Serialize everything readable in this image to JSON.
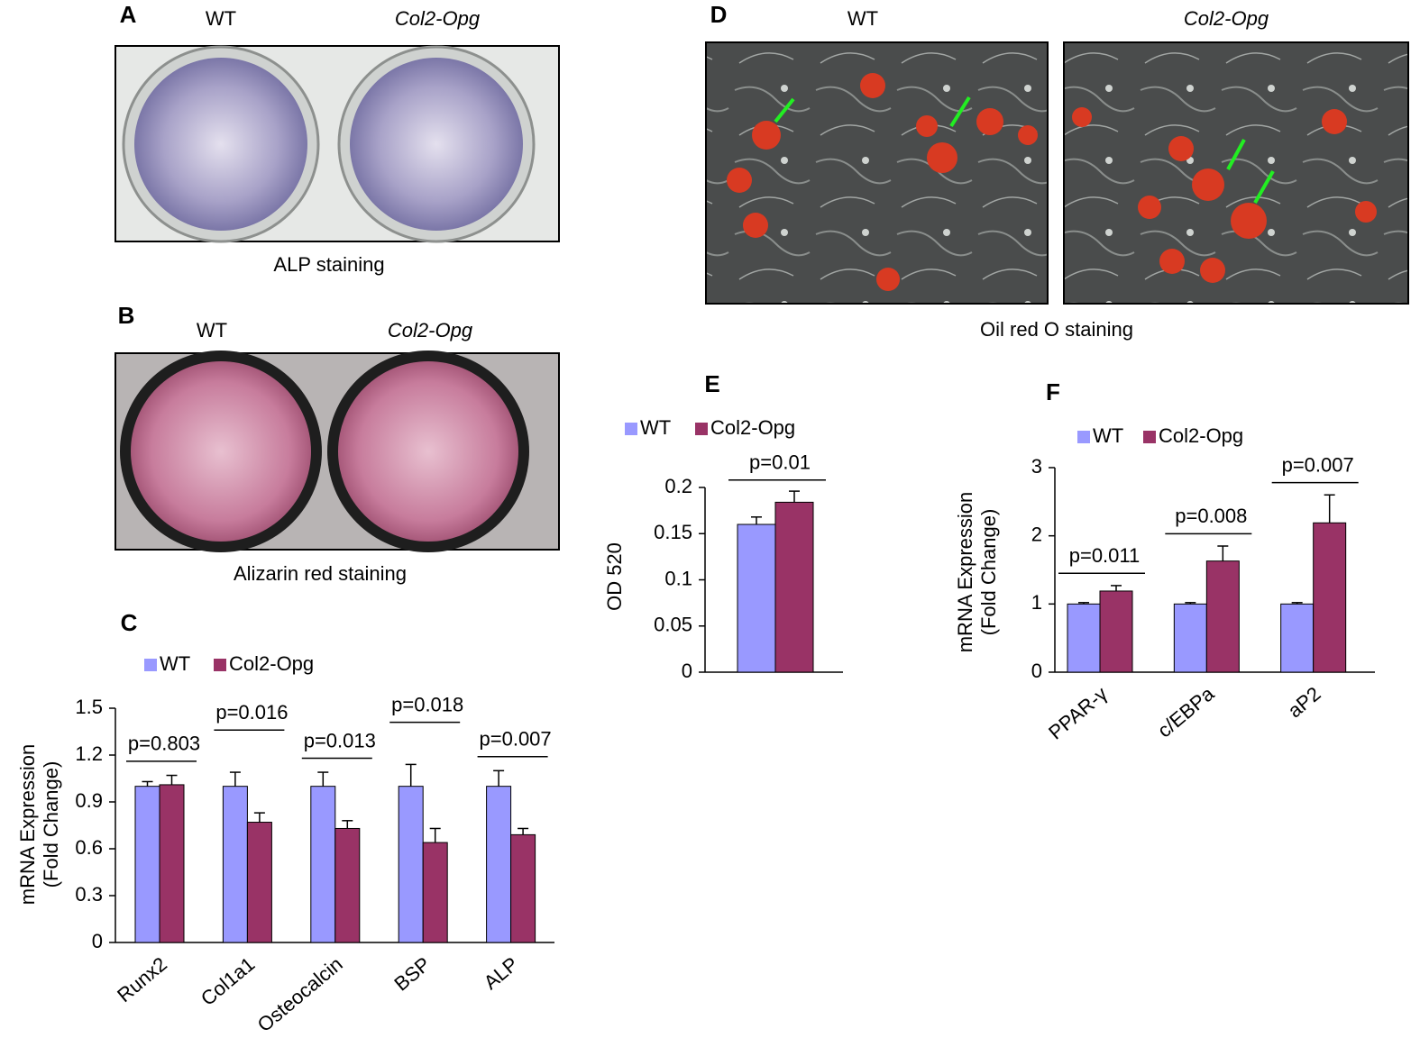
{
  "panels": {
    "A": {
      "label": "A",
      "columns": [
        "WT",
        "Col2-Opg"
      ],
      "caption": "ALP staining"
    },
    "B": {
      "label": "B",
      "columns": [
        "WT",
        "Col2-Opg"
      ],
      "caption": "Alizarin red staining"
    },
    "D": {
      "label": "D",
      "columns": [
        "WT",
        "Col2-Opg"
      ],
      "caption": "Oil red O staining"
    }
  },
  "chart_data": [
    {
      "type": "bar",
      "panel": "C",
      "y_label": [
        "mRNA Expression",
        "(Fold Change)"
      ],
      "categories": [
        "Runx2",
        "Col1a1",
        "Osteocalcin",
        "BSP",
        "ALP"
      ],
      "series": [
        {
          "name": "WT",
          "color": "#9999ff",
          "values": [
            1,
            1,
            1,
            1,
            1
          ],
          "errors": [
            0.03,
            0.09,
            0.09,
            0.14,
            0.1
          ]
        },
        {
          "name": "Col2-Opg",
          "color": "#993366",
          "values": [
            1.01,
            0.77,
            0.73,
            0.64,
            0.69
          ],
          "errors": [
            0.06,
            0.06,
            0.05,
            0.09,
            0.04
          ]
        }
      ],
      "annotations": [
        "p=0.803",
        "p=0.016",
        "p=0.013",
        "p=0.018",
        "p=0.007"
      ],
      "ylim": [
        0,
        1.5
      ],
      "yticks": [
        0,
        0.3,
        0.6,
        0.9,
        1.2,
        1.5
      ],
      "legend": "top-left"
    },
    {
      "type": "bar",
      "panel": "E",
      "y_label": [
        "OD 520"
      ],
      "categories": [
        null
      ],
      "series": [
        {
          "name": "WT",
          "color": "#9999ff",
          "values": [
            0.16
          ],
          "errors": [
            0.008
          ]
        },
        {
          "name": "Col2-Opg",
          "color": "#993366",
          "values": [
            0.184
          ],
          "errors": [
            0.012
          ]
        }
      ],
      "annotations": [
        "p=0.01"
      ],
      "ylim": [
        0,
        0.2
      ],
      "yticks": [
        0,
        0.05,
        0.1,
        0.15,
        0.2
      ],
      "legend": "top-left"
    },
    {
      "type": "bar",
      "panel": "F",
      "y_label": [
        "mRNA Expression",
        "(Fold Change)"
      ],
      "categories": [
        "PPAR-γ",
        "c/EBPa",
        "aP2"
      ],
      "series": [
        {
          "name": "WT",
          "color": "#9999ff",
          "values": [
            1,
            1,
            1
          ],
          "errors": [
            0.02,
            0.02,
            0.02
          ]
        },
        {
          "name": "Col2-Opg",
          "color": "#993366",
          "values": [
            1.19,
            1.63,
            2.19
          ],
          "errors": [
            0.08,
            0.22,
            0.41
          ]
        }
      ],
      "annotations": [
        "p=0.011",
        "p=0.008",
        "p=0.007"
      ],
      "ylim": [
        0,
        3
      ],
      "yticks": [
        0,
        1,
        2,
        3
      ],
      "legend": "top-left"
    }
  ]
}
